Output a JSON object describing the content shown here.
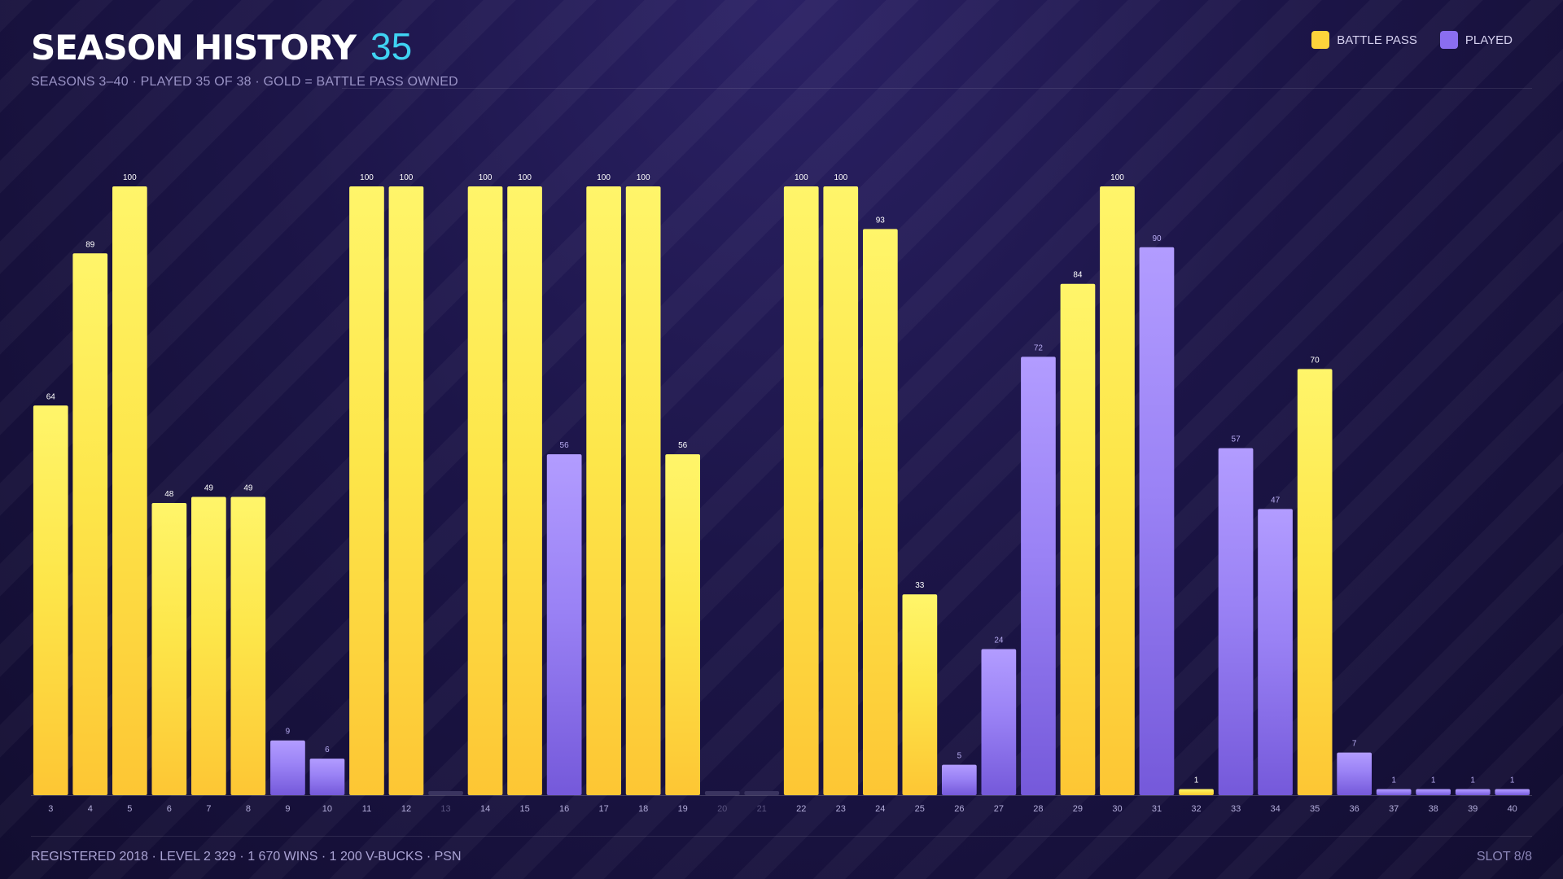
{
  "header": {
    "title": "SEASON HISTORY",
    "count": "35",
    "subtitle": "SEASONS 3–40  ·  PLAYED 35 OF 38  ·  GOLD = BATTLE PASS OWNED"
  },
  "legend": [
    {
      "label": "BATTLE PASS",
      "color": "#fdd33b"
    },
    {
      "label": "PLAYED",
      "color": "#8a6ef0"
    }
  ],
  "footer": {
    "left": "REGISTERED 2018  ·  LEVEL 2 329  ·  1 670 WINS  ·  1 200 V-BUCKS  ·  PSN",
    "right": "SLOT 8/8"
  },
  "colors": {
    "battle_pass": "#fdd33b",
    "played": "#8a6ef0",
    "not_played": "#3a3460",
    "accent": "#3fd3f2"
  },
  "chart_data": {
    "type": "bar",
    "title": "SEASON HISTORY",
    "xlabel": "",
    "ylabel": "",
    "ylim": [
      0,
      100
    ],
    "grid": false,
    "legend_position": "top-right",
    "categories": [
      "3",
      "4",
      "5",
      "6",
      "7",
      "8",
      "9",
      "10",
      "11",
      "12",
      "13",
      "14",
      "15",
      "16",
      "17",
      "18",
      "19",
      "20",
      "21",
      "22",
      "23",
      "24",
      "25",
      "26",
      "27",
      "28",
      "29",
      "30",
      "31",
      "32",
      "33",
      "34",
      "35",
      "36",
      "37",
      "38",
      "39",
      "40"
    ],
    "values": [
      64,
      89,
      100,
      48,
      49,
      49,
      9,
      6,
      100,
      100,
      null,
      100,
      100,
      56,
      100,
      100,
      56,
      null,
      null,
      100,
      100,
      93,
      33,
      5,
      24,
      72,
      84,
      100,
      90,
      1,
      57,
      47,
      70,
      7,
      1,
      1,
      1,
      1
    ],
    "status": [
      "bp",
      "bp",
      "bp",
      "bp",
      "bp",
      "bp",
      "played",
      "played",
      "bp",
      "bp",
      "none",
      "bp",
      "bp",
      "played",
      "bp",
      "bp",
      "bp",
      "none",
      "none",
      "bp",
      "bp",
      "bp",
      "bp",
      "played",
      "played",
      "played",
      "bp",
      "bp",
      "played",
      "bp",
      "played",
      "played",
      "bp",
      "played",
      "played",
      "played",
      "played",
      "played"
    ],
    "series": [
      {
        "name": "BATTLE PASS",
        "key": "bp"
      },
      {
        "name": "PLAYED",
        "key": "played"
      }
    ]
  }
}
